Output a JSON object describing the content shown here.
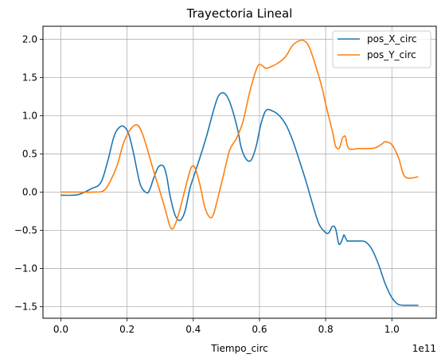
{
  "chart_data": {
    "type": "line",
    "title": "Trayectoria Lineal",
    "xlabel": "Tiempo_circ",
    "ylabel": "",
    "x_offset_text": "1e11",
    "xlim": [
      -0.054,
      1.134
    ],
    "ylim": [
      -1.65,
      2.17
    ],
    "grid": true,
    "legend_position": "top-right",
    "x_ticks": [
      0.0,
      0.2,
      0.4,
      0.6,
      0.8,
      1.0
    ],
    "x_tick_labels": [
      "0.0",
      "0.2",
      "0.4",
      "0.6",
      "0.8",
      "1.0"
    ],
    "y_ticks": [
      -1.5,
      -1.0,
      -0.5,
      0.0,
      0.5,
      1.0,
      1.5,
      2.0
    ],
    "y_tick_labels": [
      "−1.5",
      "−1.0",
      "−0.5",
      "0.0",
      "0.5",
      "1.0",
      "1.5",
      "2.0"
    ],
    "series": [
      {
        "name": "pos_X_circ",
        "color": "#1f77b4",
        "x": [
          0.0,
          0.05,
          0.09,
          0.12,
          0.14,
          0.16,
          0.175,
          0.19,
          0.205,
          0.22,
          0.24,
          0.26,
          0.27,
          0.28,
          0.295,
          0.31,
          0.32,
          0.33,
          0.345,
          0.36,
          0.375,
          0.39,
          0.405,
          0.42,
          0.44,
          0.46,
          0.475,
          0.49,
          0.505,
          0.52,
          0.535,
          0.545,
          0.56,
          0.575,
          0.59,
          0.605,
          0.62,
          0.64,
          0.66,
          0.68,
          0.7,
          0.72,
          0.74,
          0.76,
          0.78,
          0.8,
          0.81,
          0.82,
          0.83,
          0.84,
          0.85,
          0.855,
          0.86,
          0.865,
          0.87,
          0.9,
          0.92,
          0.94,
          0.96,
          0.98,
          1.0,
          1.02,
          1.05,
          1.08
        ],
        "y": [
          -0.04,
          -0.035,
          0.04,
          0.12,
          0.38,
          0.72,
          0.84,
          0.86,
          0.76,
          0.5,
          0.1,
          -0.01,
          0.05,
          0.18,
          0.33,
          0.34,
          0.2,
          -0.05,
          -0.3,
          -0.37,
          -0.25,
          0.05,
          0.25,
          0.45,
          0.73,
          1.05,
          1.25,
          1.3,
          1.23,
          1.05,
          0.8,
          0.58,
          0.43,
          0.42,
          0.6,
          0.9,
          1.07,
          1.06,
          1.0,
          0.88,
          0.68,
          0.42,
          0.15,
          -0.15,
          -0.42,
          -0.53,
          -0.53,
          -0.45,
          -0.48,
          -0.68,
          -0.62,
          -0.56,
          -0.6,
          -0.64,
          -0.64,
          -0.64,
          -0.65,
          -0.75,
          -0.95,
          -1.2,
          -1.38,
          -1.47,
          -1.48,
          -1.48
        ]
      },
      {
        "name": "pos_Y_circ",
        "color": "#ff7f0e",
        "x": [
          0.0,
          0.05,
          0.1,
          0.13,
          0.15,
          0.17,
          0.19,
          0.21,
          0.23,
          0.245,
          0.26,
          0.28,
          0.3,
          0.32,
          0.33,
          0.34,
          0.355,
          0.37,
          0.385,
          0.395,
          0.405,
          0.42,
          0.435,
          0.45,
          0.46,
          0.47,
          0.49,
          0.51,
          0.53,
          0.55,
          0.57,
          0.59,
          0.6,
          0.61,
          0.62,
          0.64,
          0.66,
          0.68,
          0.7,
          0.72,
          0.735,
          0.75,
          0.77,
          0.79,
          0.8,
          0.82,
          0.83,
          0.84,
          0.845,
          0.85,
          0.855,
          0.86,
          0.87,
          0.9,
          0.93,
          0.95,
          0.97,
          0.98,
          1.0,
          1.02,
          1.04,
          1.08
        ],
        "y": [
          0.0,
          0.0,
          0.0,
          0.02,
          0.15,
          0.35,
          0.65,
          0.82,
          0.88,
          0.78,
          0.58,
          0.28,
          0.0,
          -0.3,
          -0.45,
          -0.47,
          -0.3,
          -0.05,
          0.2,
          0.33,
          0.32,
          0.1,
          -0.2,
          -0.33,
          -0.3,
          -0.15,
          0.2,
          0.55,
          0.7,
          0.92,
          1.3,
          1.6,
          1.67,
          1.65,
          1.62,
          1.65,
          1.7,
          1.78,
          1.92,
          1.98,
          1.98,
          1.9,
          1.65,
          1.35,
          1.15,
          0.8,
          0.6,
          0.57,
          0.62,
          0.7,
          0.73,
          0.72,
          0.57,
          0.57,
          0.57,
          0.58,
          0.63,
          0.66,
          0.62,
          0.45,
          0.2,
          0.2
        ]
      }
    ]
  }
}
